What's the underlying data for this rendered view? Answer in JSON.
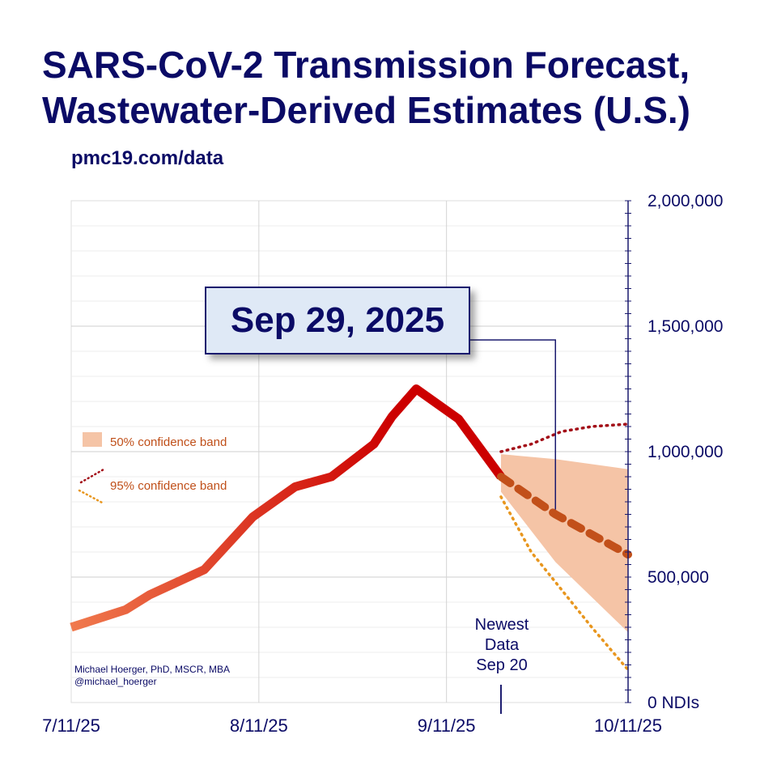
{
  "header": {
    "title_line1": "SARS-CoV-2 Transmission Forecast,",
    "title_line2": "Wastewater-Derived Estimates (U.S.)",
    "source": "pmc19.com/data"
  },
  "callout": {
    "date": "Sep 29, 2025"
  },
  "credit": {
    "line1": "Michael Hoerger, PhD, MSCR, MBA",
    "line2": "@michael_hoerger"
  },
  "newest_data": {
    "line1": "Newest",
    "line2": "Data",
    "line3": "Sep 20"
  },
  "chart_data": {
    "type": "line",
    "title": "SARS-CoV-2 Transmission Forecast, Wastewater-Derived Estimates (U.S.)",
    "ylabel": "NDIs",
    "ylim": [
      0,
      2000000
    ],
    "xlim_days_from_start": [
      0,
      92
    ],
    "start_date": "7/11/25",
    "x_ticks": [
      {
        "label": "7/11/25",
        "day": 0
      },
      {
        "label": "8/11/25",
        "day": 31
      },
      {
        "label": "9/11/25",
        "day": 62
      },
      {
        "label": "10/11/25",
        "day": 92
      }
    ],
    "y_ticks": [
      {
        "label": "2,000,000",
        "value": 2000000
      },
      {
        "label": "1,500,000",
        "value": 1500000
      },
      {
        "label": "1,000,000",
        "value": 1000000
      },
      {
        "label": "500,000",
        "value": 500000
      },
      {
        "label": "0  NDIs",
        "value": 0
      }
    ],
    "series": [
      {
        "name": "Observed",
        "style": "solid",
        "x": [
          0,
          9,
          13,
          22,
          30,
          37,
          43,
          50,
          53,
          57,
          64,
          71
        ],
        "values": [
          300000,
          370000,
          430000,
          530000,
          740000,
          860000,
          900000,
          1030000,
          1140000,
          1250000,
          1130000,
          900000
        ]
      },
      {
        "name": "Forecast",
        "style": "dashed",
        "x": [
          71,
          80,
          92
        ],
        "values": [
          900000,
          750000,
          590000
        ]
      },
      {
        "name": "95% confidence band (upper)",
        "style": "dotted",
        "x": [
          71,
          76,
          81,
          86,
          92
        ],
        "values": [
          1000000,
          1030000,
          1080000,
          1100000,
          1110000
        ]
      },
      {
        "name": "95% confidence band (lower)",
        "style": "dotted",
        "x": [
          71,
          76,
          81,
          86,
          92
        ],
        "values": [
          820000,
          600000,
          450000,
          300000,
          130000
        ]
      }
    ],
    "band50": {
      "name": "50% confidence band",
      "x": [
        71,
        80,
        92
      ],
      "upper": [
        990000,
        970000,
        930000
      ],
      "lower": [
        840000,
        560000,
        280000
      ]
    },
    "legend": [
      {
        "label": "50% confidence band",
        "kind": "band"
      },
      {
        "label": "95% confidence band",
        "kind": "dotted"
      }
    ],
    "newest_data_day": 71,
    "callout_day": 80,
    "colors": {
      "observed_start": "#f07a4e",
      "observed_end": "#cc0000",
      "forecast": "#c2501a",
      "band50": "#f5c4a6",
      "ci_upper": "#a30f18",
      "ci_lower": "#e8961e",
      "grid": "#dcdcdc",
      "axis": "#1a1a6e",
      "text": "#0b0b66",
      "legend_text": "#c0501a"
    }
  }
}
